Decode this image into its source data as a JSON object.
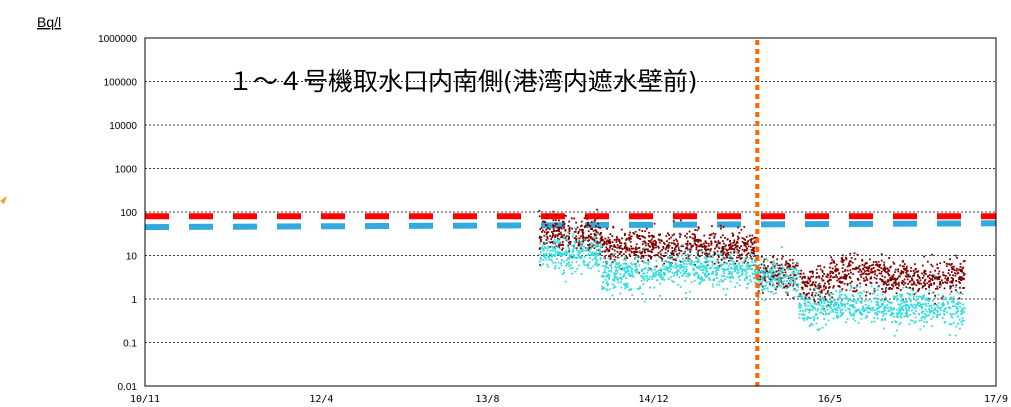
{
  "chart_data": {
    "type": "scatter",
    "title": "１～４号機取水口内南側(港湾内遮水壁前)",
    "ylabel": "Bq/l",
    "xlabel": "",
    "y_scale": "log",
    "ylim": [
      0.01,
      1000000
    ],
    "y_ticks": [
      "1000000",
      "100000",
      "10000",
      "1000",
      "100",
      "10",
      "1",
      "0.1",
      "0.01"
    ],
    "x_ticks": [
      "10/11",
      "12/4",
      "13/8",
      "14/12",
      "16/5",
      "17/9"
    ],
    "grid": "horizontal dotted at every decade",
    "legend": "none",
    "reference_lines": [
      {
        "style": "dashed",
        "color": "#ff0000",
        "y": 80,
        "x_from": "10/11",
        "x_to": "17/9"
      },
      {
        "style": "dashed",
        "color": "#33aadd",
        "y_start": 45,
        "y_end": 55,
        "x_from": "10/11",
        "x_to": "17/9"
      }
    ],
    "marker_line": {
      "style": "dotted-vertical",
      "color": "#ff6600",
      "x": "15/10"
    },
    "series": [
      {
        "color": "#800000",
        "x_range": [
          "14/1",
          "17/6"
        ],
        "segments": [
          {
            "x_from": "14/1",
            "x_to": "14/7",
            "y_median": 30
          },
          {
            "x_from": "14/7",
            "x_to": "15/1",
            "y_median": 15
          },
          {
            "x_from": "15/1",
            "x_to": "15/10",
            "y_median": 15
          },
          {
            "x_from": "15/10",
            "x_to": "16/2",
            "y_median": 3.5
          },
          {
            "x_from": "16/2",
            "x_to": "16/5",
            "y_median": 2
          },
          {
            "x_from": "16/5",
            "x_to": "16/10",
            "y_median": 4
          },
          {
            "x_from": "16/10",
            "x_to": "17/6",
            "y_median": 3
          }
        ]
      },
      {
        "color": "#33dddd",
        "x_range": [
          "14/1",
          "17/6"
        ],
        "segments": [
          {
            "x_from": "14/1",
            "x_to": "14/7",
            "y_median": 10
          },
          {
            "x_from": "14/7",
            "x_to": "15/1",
            "y_median": 4
          },
          {
            "x_from": "15/1",
            "x_to": "15/10",
            "y_median": 5
          },
          {
            "x_from": "15/10",
            "x_to": "16/2",
            "y_median": 3
          },
          {
            "x_from": "16/2",
            "x_to": "16/5",
            "y_median": 0.6
          },
          {
            "x_from": "16/5",
            "x_to": "16/10",
            "y_median": 0.7
          },
          {
            "x_from": "16/10",
            "x_to": "17/6",
            "y_median": 0.6
          }
        ]
      }
    ]
  }
}
